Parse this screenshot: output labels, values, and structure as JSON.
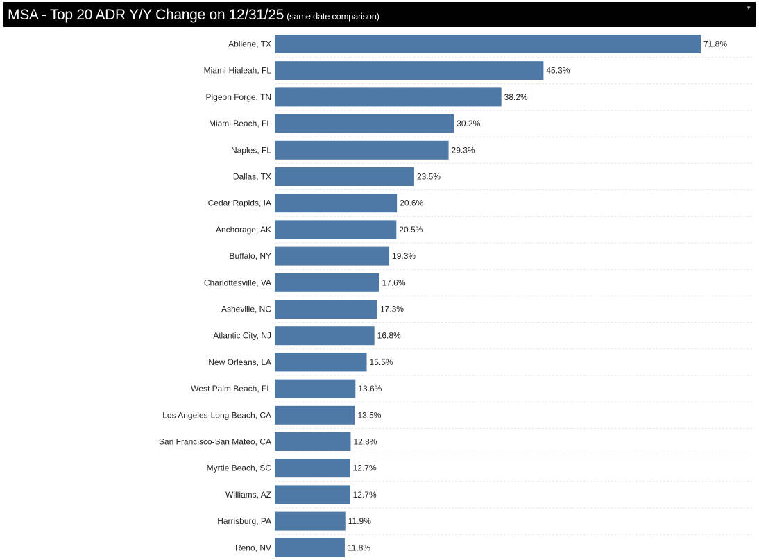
{
  "title": {
    "main": "MSA - Top 20 ADR Y/Y Change on 12/31/25",
    "sub": "(same date comparison)",
    "menu_icon": "dropdown-arrow-icon"
  },
  "chart_data": {
    "type": "bar",
    "orientation": "horizontal",
    "categories": [
      "Abilene, TX",
      "Miami-Hialeah, FL",
      "Pigeon Forge, TN",
      "Miami Beach, FL",
      "Naples, FL",
      "Dallas, TX",
      "Cedar Rapids, IA",
      "Anchorage, AK",
      "Buffalo, NY",
      "Charlottesville, VA",
      "Asheville, NC",
      "Atlantic City, NJ",
      "New Orleans, LA",
      "West Palm Beach, FL",
      "Los Angeles-Long Beach, CA",
      "San Francisco-San Mateo, CA",
      "Myrtle Beach, SC",
      "Williams, AZ",
      "Harrisburg, PA",
      "Reno, NV"
    ],
    "values": [
      71.8,
      45.3,
      38.2,
      30.2,
      29.3,
      23.5,
      20.6,
      20.5,
      19.3,
      17.6,
      17.3,
      16.8,
      15.5,
      13.6,
      13.5,
      12.8,
      12.7,
      12.7,
      11.9,
      11.8
    ],
    "labels": [
      "71.8%",
      "45.3%",
      "38.2%",
      "30.2%",
      "29.3%",
      "23.5%",
      "20.6%",
      "20.5%",
      "19.3%",
      "17.6%",
      "17.3%",
      "16.8%",
      "15.5%",
      "13.6%",
      "13.5%",
      "12.8%",
      "12.7%",
      "12.7%",
      "11.9%",
      "11.8%"
    ],
    "unit": "%",
    "xlim": [
      0,
      71.8
    ],
    "bar_color": "#4e79a7",
    "grid": false
  }
}
